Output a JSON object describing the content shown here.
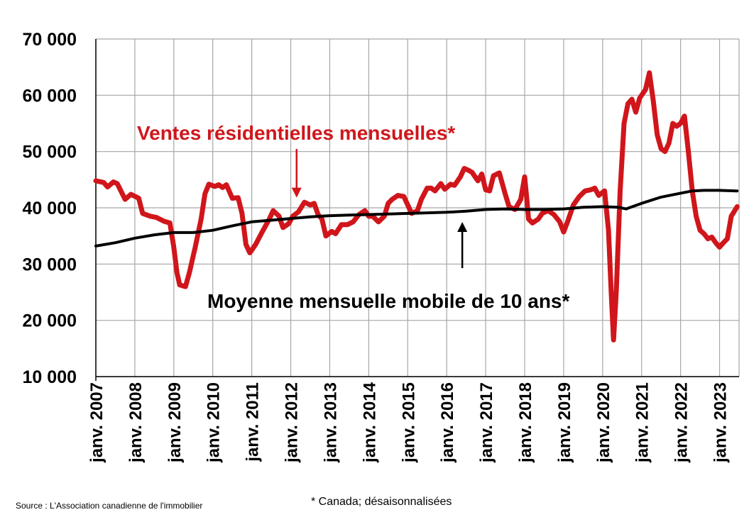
{
  "chart_data": {
    "type": "line",
    "title": "",
    "xlabel": "",
    "ylabel": "",
    "ylim": [
      10000,
      70000
    ],
    "yticks": [
      10000,
      20000,
      30000,
      40000,
      50000,
      60000,
      70000
    ],
    "ytick_labels": [
      "10 000",
      "20 000",
      "30 000",
      "40 000",
      "50 000",
      "60 000",
      "70 000"
    ],
    "xlim": [
      2007.0,
      2023.5
    ],
    "xtick_labels": [
      "janv. 2007",
      "janv. 2008",
      "janv. 2009",
      "janv. 2010",
      "janv. 2011",
      "janv. 2012",
      "janv. 2013",
      "janv. 2014",
      "janv. 2015",
      "janv. 2016",
      "janv. 2017",
      "janv. 2018",
      "janv. 2019",
      "janv. 2020",
      "janv. 2021",
      "janv. 2022",
      "janv. 2023"
    ],
    "grid": true,
    "series": [
      {
        "name": "Ventes résidentielles mensuelles*",
        "color": "#d0161b",
        "points": [
          [
            2007.0,
            44800
          ],
          [
            2007.2,
            44500
          ],
          [
            2007.3,
            43700
          ],
          [
            2007.45,
            44600
          ],
          [
            2007.55,
            44300
          ],
          [
            2007.75,
            41500
          ],
          [
            2007.9,
            42400
          ],
          [
            2008.1,
            41700
          ],
          [
            2008.2,
            39000
          ],
          [
            2008.4,
            38500
          ],
          [
            2008.55,
            38300
          ],
          [
            2008.75,
            37600
          ],
          [
            2008.9,
            37300
          ],
          [
            2009.0,
            33000
          ],
          [
            2009.08,
            28500
          ],
          [
            2009.15,
            26300
          ],
          [
            2009.3,
            26000
          ],
          [
            2009.4,
            28500
          ],
          [
            2009.55,
            33000
          ],
          [
            2009.7,
            38000
          ],
          [
            2009.8,
            42500
          ],
          [
            2009.9,
            44200
          ],
          [
            2010.05,
            43800
          ],
          [
            2010.15,
            44100
          ],
          [
            2010.25,
            43600
          ],
          [
            2010.35,
            44100
          ],
          [
            2010.5,
            41700
          ],
          [
            2010.65,
            41800
          ],
          [
            2010.75,
            39000
          ],
          [
            2010.85,
            33500
          ],
          [
            2010.95,
            32000
          ],
          [
            2011.1,
            33500
          ],
          [
            2011.25,
            35500
          ],
          [
            2011.45,
            38000
          ],
          [
            2011.55,
            39500
          ],
          [
            2011.7,
            38500
          ],
          [
            2011.8,
            36500
          ],
          [
            2011.95,
            37200
          ],
          [
            2012.05,
            38500
          ],
          [
            2012.2,
            39300
          ],
          [
            2012.35,
            41000
          ],
          [
            2012.5,
            40500
          ],
          [
            2012.6,
            40800
          ],
          [
            2012.7,
            38800
          ],
          [
            2012.8,
            38000
          ],
          [
            2012.9,
            35000
          ],
          [
            2013.05,
            35800
          ],
          [
            2013.15,
            35400
          ],
          [
            2013.3,
            37000
          ],
          [
            2013.45,
            37000
          ],
          [
            2013.6,
            37500
          ],
          [
            2013.75,
            38800
          ],
          [
            2013.9,
            39500
          ],
          [
            2014.0,
            38500
          ],
          [
            2014.1,
            38500
          ],
          [
            2014.25,
            37500
          ],
          [
            2014.4,
            38500
          ],
          [
            2014.5,
            40800
          ],
          [
            2014.6,
            41500
          ],
          [
            2014.75,
            42200
          ],
          [
            2014.9,
            42000
          ],
          [
            2015.0,
            40500
          ],
          [
            2015.1,
            39000
          ],
          [
            2015.25,
            39500
          ],
          [
            2015.35,
            41500
          ],
          [
            2015.5,
            43500
          ],
          [
            2015.6,
            43500
          ],
          [
            2015.7,
            43000
          ],
          [
            2015.85,
            44300
          ],
          [
            2015.95,
            43300
          ],
          [
            2016.1,
            44200
          ],
          [
            2016.2,
            44000
          ],
          [
            2016.35,
            45500
          ],
          [
            2016.45,
            47000
          ],
          [
            2016.55,
            46700
          ],
          [
            2016.65,
            46300
          ],
          [
            2016.8,
            44800
          ],
          [
            2016.9,
            46000
          ],
          [
            2017.0,
            43200
          ],
          [
            2017.1,
            43000
          ],
          [
            2017.2,
            45700
          ],
          [
            2017.35,
            46200
          ],
          [
            2017.5,
            42500
          ],
          [
            2017.6,
            40200
          ],
          [
            2017.75,
            39700
          ],
          [
            2017.9,
            41500
          ],
          [
            2018.0,
            45500
          ],
          [
            2018.05,
            42000
          ],
          [
            2018.1,
            38000
          ],
          [
            2018.2,
            37300
          ],
          [
            2018.35,
            38000
          ],
          [
            2018.45,
            39000
          ],
          [
            2018.6,
            39500
          ],
          [
            2018.75,
            38800
          ],
          [
            2018.9,
            37500
          ],
          [
            2019.0,
            35700
          ],
          [
            2019.1,
            37500
          ],
          [
            2019.25,
            40500
          ],
          [
            2019.4,
            42000
          ],
          [
            2019.55,
            43000
          ],
          [
            2019.7,
            43200
          ],
          [
            2019.8,
            43500
          ],
          [
            2019.9,
            42200
          ],
          [
            2020.05,
            43000
          ],
          [
            2020.15,
            36000
          ],
          [
            2020.22,
            25000
          ],
          [
            2020.28,
            16500
          ],
          [
            2020.35,
            25000
          ],
          [
            2020.45,
            43000
          ],
          [
            2020.55,
            55000
          ],
          [
            2020.65,
            58500
          ],
          [
            2020.75,
            59300
          ],
          [
            2020.85,
            57000
          ],
          [
            2020.95,
            59500
          ],
          [
            2021.1,
            61000
          ],
          [
            2021.2,
            64000
          ],
          [
            2021.3,
            59000
          ],
          [
            2021.4,
            53000
          ],
          [
            2021.5,
            50500
          ],
          [
            2021.6,
            50000
          ],
          [
            2021.7,
            51500
          ],
          [
            2021.8,
            55000
          ],
          [
            2021.9,
            54500
          ],
          [
            2022.0,
            55000
          ],
          [
            2022.1,
            56300
          ],
          [
            2022.2,
            50000
          ],
          [
            2022.3,
            43000
          ],
          [
            2022.4,
            38500
          ],
          [
            2022.5,
            36000
          ],
          [
            2022.6,
            35400
          ],
          [
            2022.7,
            34500
          ],
          [
            2022.8,
            34800
          ],
          [
            2022.9,
            33800
          ],
          [
            2023.0,
            33000
          ],
          [
            2023.1,
            33800
          ],
          [
            2023.2,
            34500
          ],
          [
            2023.3,
            38500
          ],
          [
            2023.45,
            40200
          ]
        ]
      },
      {
        "name": "Moyenne mensuelle mobile de 10 ans*",
        "color": "#000000",
        "points": [
          [
            2007.0,
            33200
          ],
          [
            2007.5,
            33800
          ],
          [
            2008.0,
            34600
          ],
          [
            2008.5,
            35200
          ],
          [
            2009.0,
            35600
          ],
          [
            2009.5,
            35600
          ],
          [
            2010.0,
            36000
          ],
          [
            2010.5,
            36800
          ],
          [
            2011.0,
            37500
          ],
          [
            2011.5,
            37800
          ],
          [
            2012.0,
            38100
          ],
          [
            2012.5,
            38400
          ],
          [
            2013.0,
            38600
          ],
          [
            2013.5,
            38700
          ],
          [
            2014.0,
            38800
          ],
          [
            2014.5,
            38900
          ],
          [
            2015.0,
            39000
          ],
          [
            2015.5,
            39100
          ],
          [
            2016.0,
            39200
          ],
          [
            2016.5,
            39400
          ],
          [
            2017.0,
            39700
          ],
          [
            2017.5,
            39800
          ],
          [
            2018.0,
            39700
          ],
          [
            2018.5,
            39700
          ],
          [
            2019.0,
            39800
          ],
          [
            2019.5,
            40100
          ],
          [
            2020.0,
            40200
          ],
          [
            2020.4,
            40100
          ],
          [
            2020.6,
            39800
          ],
          [
            2021.0,
            40800
          ],
          [
            2021.5,
            41900
          ],
          [
            2022.0,
            42600
          ],
          [
            2022.3,
            43000
          ],
          [
            2022.6,
            43100
          ],
          [
            2023.0,
            43100
          ],
          [
            2023.45,
            43000
          ]
        ]
      }
    ],
    "annotations": [
      {
        "text": "Ventes résidentielles mensuelles*",
        "color": "#d0161b",
        "arrow_to": [
          2012.15,
          40800
        ]
      },
      {
        "text": "Moyenne mensuelle mobile de 10 ans*",
        "color": "#000000",
        "arrow_to": [
          2016.4,
          39500
        ]
      }
    ]
  },
  "footer": {
    "source": "Source : L'Association canadienne de l'immobilier",
    "note": "* Canada; désaisonnalisées"
  }
}
